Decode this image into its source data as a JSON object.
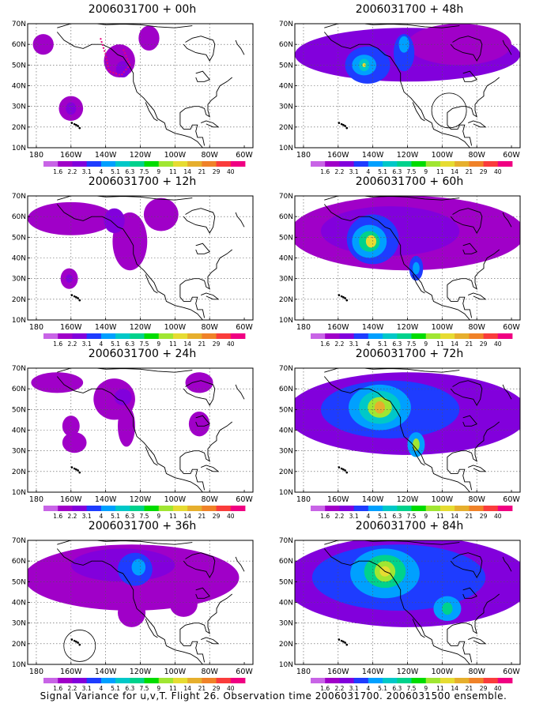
{
  "panels": [
    {
      "title": "2006031700 + 00h"
    },
    {
      "title": "2006031700 + 48h"
    },
    {
      "title": "2006031700 + 12h"
    },
    {
      "title": "2006031700 + 60h"
    },
    {
      "title": "2006031700 + 24h"
    },
    {
      "title": "2006031700 + 72h"
    },
    {
      "title": "2006031700 + 36h"
    },
    {
      "title": "2006031700 + 84h"
    }
  ],
  "y_ticks": [
    "70N",
    "60N",
    "50N",
    "40N",
    "30N",
    "20N",
    "10N"
  ],
  "x_ticks": [
    "180",
    "160W",
    "140W",
    "120W",
    "100W",
    "80W",
    "60W"
  ],
  "colorbar": {
    "labels": [
      "1.6",
      "2.2",
      "3.1",
      "4",
      "5.1",
      "6.3",
      "7.5",
      "9",
      "11",
      "14",
      "21",
      "29",
      "40"
    ],
    "colors": [
      "#a000c8",
      "#8200dc",
      "#1e3cff",
      "#00a0ff",
      "#00c8c8",
      "#00d28c",
      "#00dc00",
      "#a0e632",
      "#e6dc32",
      "#e6af2d",
      "#f08228",
      "#fa3c3c",
      "#f00082"
    ]
  },
  "caption": "Signal Variance for u,v,T. Flight 26. Observation time 2006031700. 2006031500 ensemble."
}
